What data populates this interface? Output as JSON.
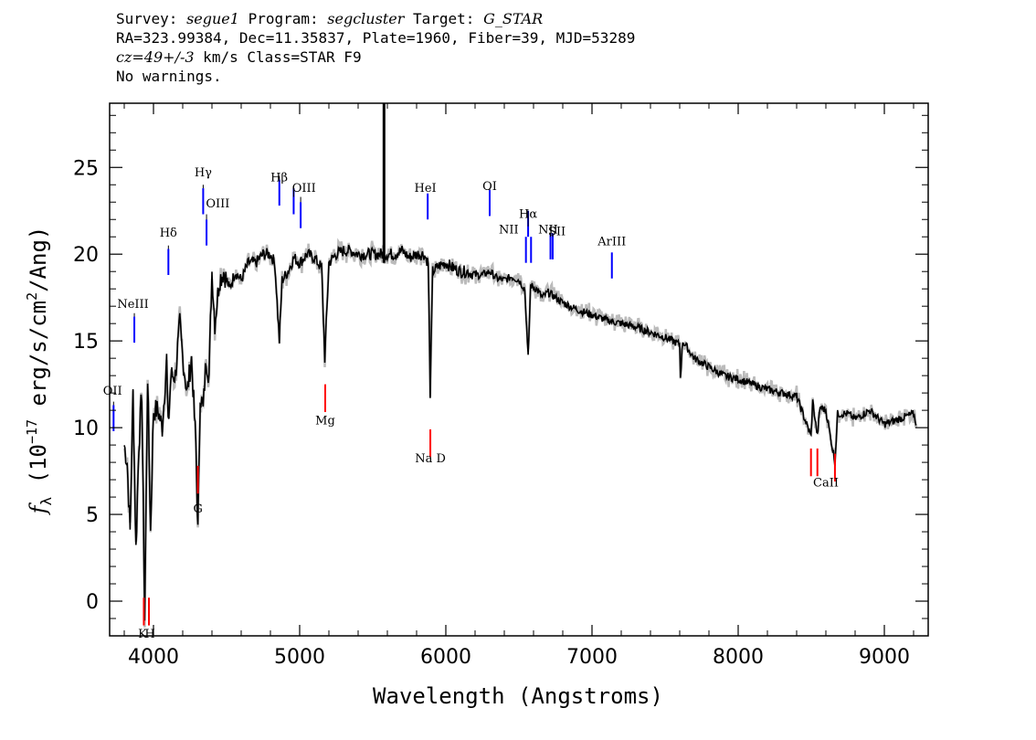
{
  "header": {
    "line1": {
      "survey_key": "Survey:",
      "survey_val": "segue1",
      "program_key": "Program:",
      "program_val": "segcluster",
      "target_key": "Target:",
      "target_val": "G_STAR"
    },
    "line2": "RA=323.99384, Dec=11.35837, Plate=1960, Fiber=39, MJD=53289",
    "line3": {
      "cz_val": "cz=49+/-3",
      "rest": " km/s Class=STAR F9"
    },
    "line4": "No warnings."
  },
  "chart_data": {
    "type": "line",
    "xlabel": "Wavelength (Angstroms)",
    "ylabel": "f_λ (10^-17 erg/s/cm^2/Ang)",
    "ylabel_parts": {
      "f": "f",
      "sub": "λ",
      "pre": " (10",
      "exp": "−17",
      "mid": " erg/s/cm",
      "exp2": "2",
      "post": "/Ang)"
    },
    "xlim": [
      3700,
      9300
    ],
    "ylim": [
      -2,
      28.7
    ],
    "x_ticks": [
      4000,
      5000,
      6000,
      7000,
      8000,
      9000
    ],
    "x_tick_labels": [
      "4000",
      "5000",
      "6000",
      "7000",
      "8000",
      "9000"
    ],
    "y_ticks": [
      0,
      5,
      10,
      15,
      20,
      25
    ],
    "y_tick_labels": [
      "0",
      "5",
      "10",
      "15",
      "20",
      "25"
    ],
    "x_minor_step": 200,
    "y_minor_step": 1,
    "colors": {
      "flux": "#000000",
      "error": "#bbbbbb",
      "emission": "#0000ff",
      "absorption": "#ff0000"
    },
    "series": [
      {
        "role": "flux",
        "x": [
          3800,
          3820,
          3840,
          3860,
          3880,
          3900,
          3920,
          3940,
          3960,
          3980,
          4000,
          4030,
          4060,
          4090,
          4100,
          4120,
          4150,
          4180,
          4200,
          4230,
          4260,
          4290,
          4304,
          4320,
          4340,
          4360,
          4380,
          4400,
          4420,
          4450,
          4480,
          4520,
          4560,
          4600,
          4650,
          4700,
          4750,
          4800,
          4830,
          4861,
          4880,
          4920,
          4960,
          5000,
          5050,
          5100,
          5150,
          5172,
          5200,
          5250,
          5300,
          5350,
          5400,
          5450,
          5500,
          5560,
          5580,
          5600,
          5650,
          5700,
          5750,
          5800,
          5850,
          5880,
          5893,
          5910,
          5950,
          6000,
          6050,
          6100,
          6150,
          6200,
          6250,
          6300,
          6350,
          6400,
          6450,
          6500,
          6540,
          6563,
          6580,
          6620,
          6660,
          6700,
          6750,
          6800,
          6900,
          7000,
          7100,
          7200,
          7300,
          7400,
          7500,
          7600,
          7605,
          7620,
          7700,
          7800,
          7900,
          8000,
          8100,
          8200,
          8300,
          8400,
          8498,
          8510,
          8542,
          8560,
          8600,
          8662,
          8680,
          8750,
          8800,
          8900,
          9000,
          9100,
          9200,
          9220
        ],
        "y": [
          9,
          8,
          4,
          12,
          3,
          9,
          12,
          -1,
          13,
          4,
          11,
          11,
          10,
          14,
          10,
          13,
          13,
          16,
          14,
          12,
          14,
          9,
          4,
          12,
          11,
          14,
          13,
          19,
          16,
          18.5,
          19,
          18,
          19,
          18.5,
          19.5,
          19.5,
          20,
          20,
          19.5,
          15,
          18.5,
          19,
          19.8,
          19.5,
          20,
          19.8,
          19.2,
          14,
          19.5,
          20,
          20.2,
          20.2,
          20,
          20,
          20,
          20,
          20,
          20,
          20,
          20.2,
          19.8,
          20,
          20,
          19.5,
          12,
          19,
          19.3,
          19.5,
          19.2,
          19,
          19,
          18.8,
          18.8,
          19,
          18.6,
          18.5,
          18.7,
          18.5,
          18,
          14,
          18.2,
          18,
          17.5,
          17.8,
          17.5,
          17.2,
          16.8,
          16.5,
          16.2,
          16,
          15.8,
          15.5,
          15.2,
          14.8,
          13,
          15,
          14,
          13.5,
          13,
          12.8,
          12.5,
          12.2,
          12,
          11.8,
          9.5,
          11.5,
          9.5,
          11.2,
          11,
          8,
          10.8,
          10.8,
          10.5,
          11,
          10.2,
          10.5,
          10.8,
          10.2
        ]
      }
    ],
    "spike": {
      "x": 5577,
      "y_from": 19.5,
      "y_to": 28.7
    },
    "emission_lines": [
      {
        "name": "Hγ",
        "x": 4340,
        "y_lo": 22.3,
        "y_hi": 24
      },
      {
        "name": "OIII",
        "x": 4363,
        "y_lo": 20.5,
        "y_hi": 22.3
      },
      {
        "name": "Hδ",
        "x": 4102,
        "y_lo": 18.8,
        "y_hi": 20.5
      },
      {
        "name": "NeIII",
        "x": 3869,
        "y_lo": 14.9,
        "y_hi": 16.6
      },
      {
        "name": "OII",
        "x": 3727,
        "y_lo": 9.8,
        "y_hi": 11.5
      },
      {
        "name": "Hβ",
        "x": 4861,
        "y_lo": 22.8,
        "y_hi": 24.5
      },
      {
        "name": "OIII",
        "x": 4959,
        "y_lo": 22.3,
        "y_hi": 23.3
      },
      {
        "name": "OIII",
        "x": 5007,
        "y_lo": 21.5,
        "y_hi": 23.3
      },
      {
        "name": "HeI",
        "x": 5876,
        "y_lo": 22,
        "y_hi": 23.5
      },
      {
        "name": "OI",
        "x": 6300,
        "y_lo": 22.2,
        "y_hi": 23.8
      },
      {
        "name": "NII",
        "x": 6548,
        "y_lo": 19.5,
        "y_hi": 21
      },
      {
        "name": "Hα",
        "x": 6563,
        "y_lo": 21,
        "y_hi": 21.6
      },
      {
        "name": "NII",
        "x": 6583,
        "y_lo": 19.5,
        "y_hi": 21
      },
      {
        "name": "SII",
        "x": 6716,
        "y_lo": 19.7,
        "y_hi": 21
      },
      {
        "name": "SII",
        "x": 6731,
        "y_lo": 19.7,
        "y_hi": 21
      },
      {
        "name": "ArIII",
        "x": 7136,
        "y_lo": 18.6,
        "y_hi": 20.1
      }
    ],
    "absorption_lines": [
      {
        "name": "K",
        "x": 3934,
        "y_lo": -1.4,
        "y_hi": 0.2
      },
      {
        "name": "H",
        "x": 3969,
        "y_lo": -1.4,
        "y_hi": 0.2
      },
      {
        "name": "G",
        "x": 4304,
        "y_lo": 6.2,
        "y_hi": 7.8
      },
      {
        "name": "Mg",
        "x": 5175,
        "y_lo": 10.9,
        "y_hi": 12.5
      },
      {
        "name": "Na D",
        "x": 5894,
        "y_lo": 8.3,
        "y_hi": 9.9
      },
      {
        "name": "CaII",
        "x": 8498,
        "y_lo": 7.2,
        "y_hi": 8.8
      },
      {
        "name": "CaII",
        "x": 8542,
        "y_lo": 7.2,
        "y_hi": 8.8
      },
      {
        "name": "CaII",
        "x": 8662,
        "y_lo": 6.9,
        "y_hi": 8.5
      }
    ],
    "line_labels": [
      {
        "text": "Hγ",
        "x": 4340,
        "y": 24.5,
        "kind": "emission"
      },
      {
        "text": "OIII",
        "x": 4440,
        "y": 22.7,
        "kind": "emission"
      },
      {
        "text": "Hδ",
        "x": 4102,
        "y": 21,
        "kind": "emission"
      },
      {
        "text": "NeIII",
        "x": 3860,
        "y": 16.9,
        "kind": "emission"
      },
      {
        "text": "OII",
        "x": 3720,
        "y": 11.9,
        "kind": "emission"
      },
      {
        "text": "Hβ",
        "x": 4860,
        "y": 24.2,
        "kind": "emission"
      },
      {
        "text": "OIII",
        "x": 5030,
        "y": 23.6,
        "kind": "emission"
      },
      {
        "text": "HeI",
        "x": 5860,
        "y": 23.6,
        "kind": "emission"
      },
      {
        "text": "OI",
        "x": 6300,
        "y": 23.7,
        "kind": "emission"
      },
      {
        "text": "Hα",
        "x": 6563,
        "y": 22.1,
        "kind": "emission"
      },
      {
        "text": "NII",
        "x": 6430,
        "y": 21.2,
        "kind": "emission"
      },
      {
        "text": "NII",
        "x": 6700,
        "y": 21.2,
        "kind": "emission"
      },
      {
        "text": "SII",
        "x": 6760,
        "y": 21.1,
        "kind": "emission"
      },
      {
        "text": "ArIII",
        "x": 7136,
        "y": 20.5,
        "kind": "emission"
      },
      {
        "text": "G",
        "x": 4304,
        "y": 5.1,
        "kind": "absorption"
      },
      {
        "text": "Mg",
        "x": 5175,
        "y": 10.2,
        "kind": "absorption"
      },
      {
        "text": "Na D",
        "x": 5894,
        "y": 8.0,
        "kind": "absorption"
      },
      {
        "text": "CaII",
        "x": 8600,
        "y": 6.6,
        "kind": "absorption"
      },
      {
        "text": "K",
        "x": 3925,
        "y": -2.1,
        "kind": "absorption"
      },
      {
        "text": "H",
        "x": 3975,
        "y": -2.1,
        "kind": "absorption"
      }
    ]
  }
}
